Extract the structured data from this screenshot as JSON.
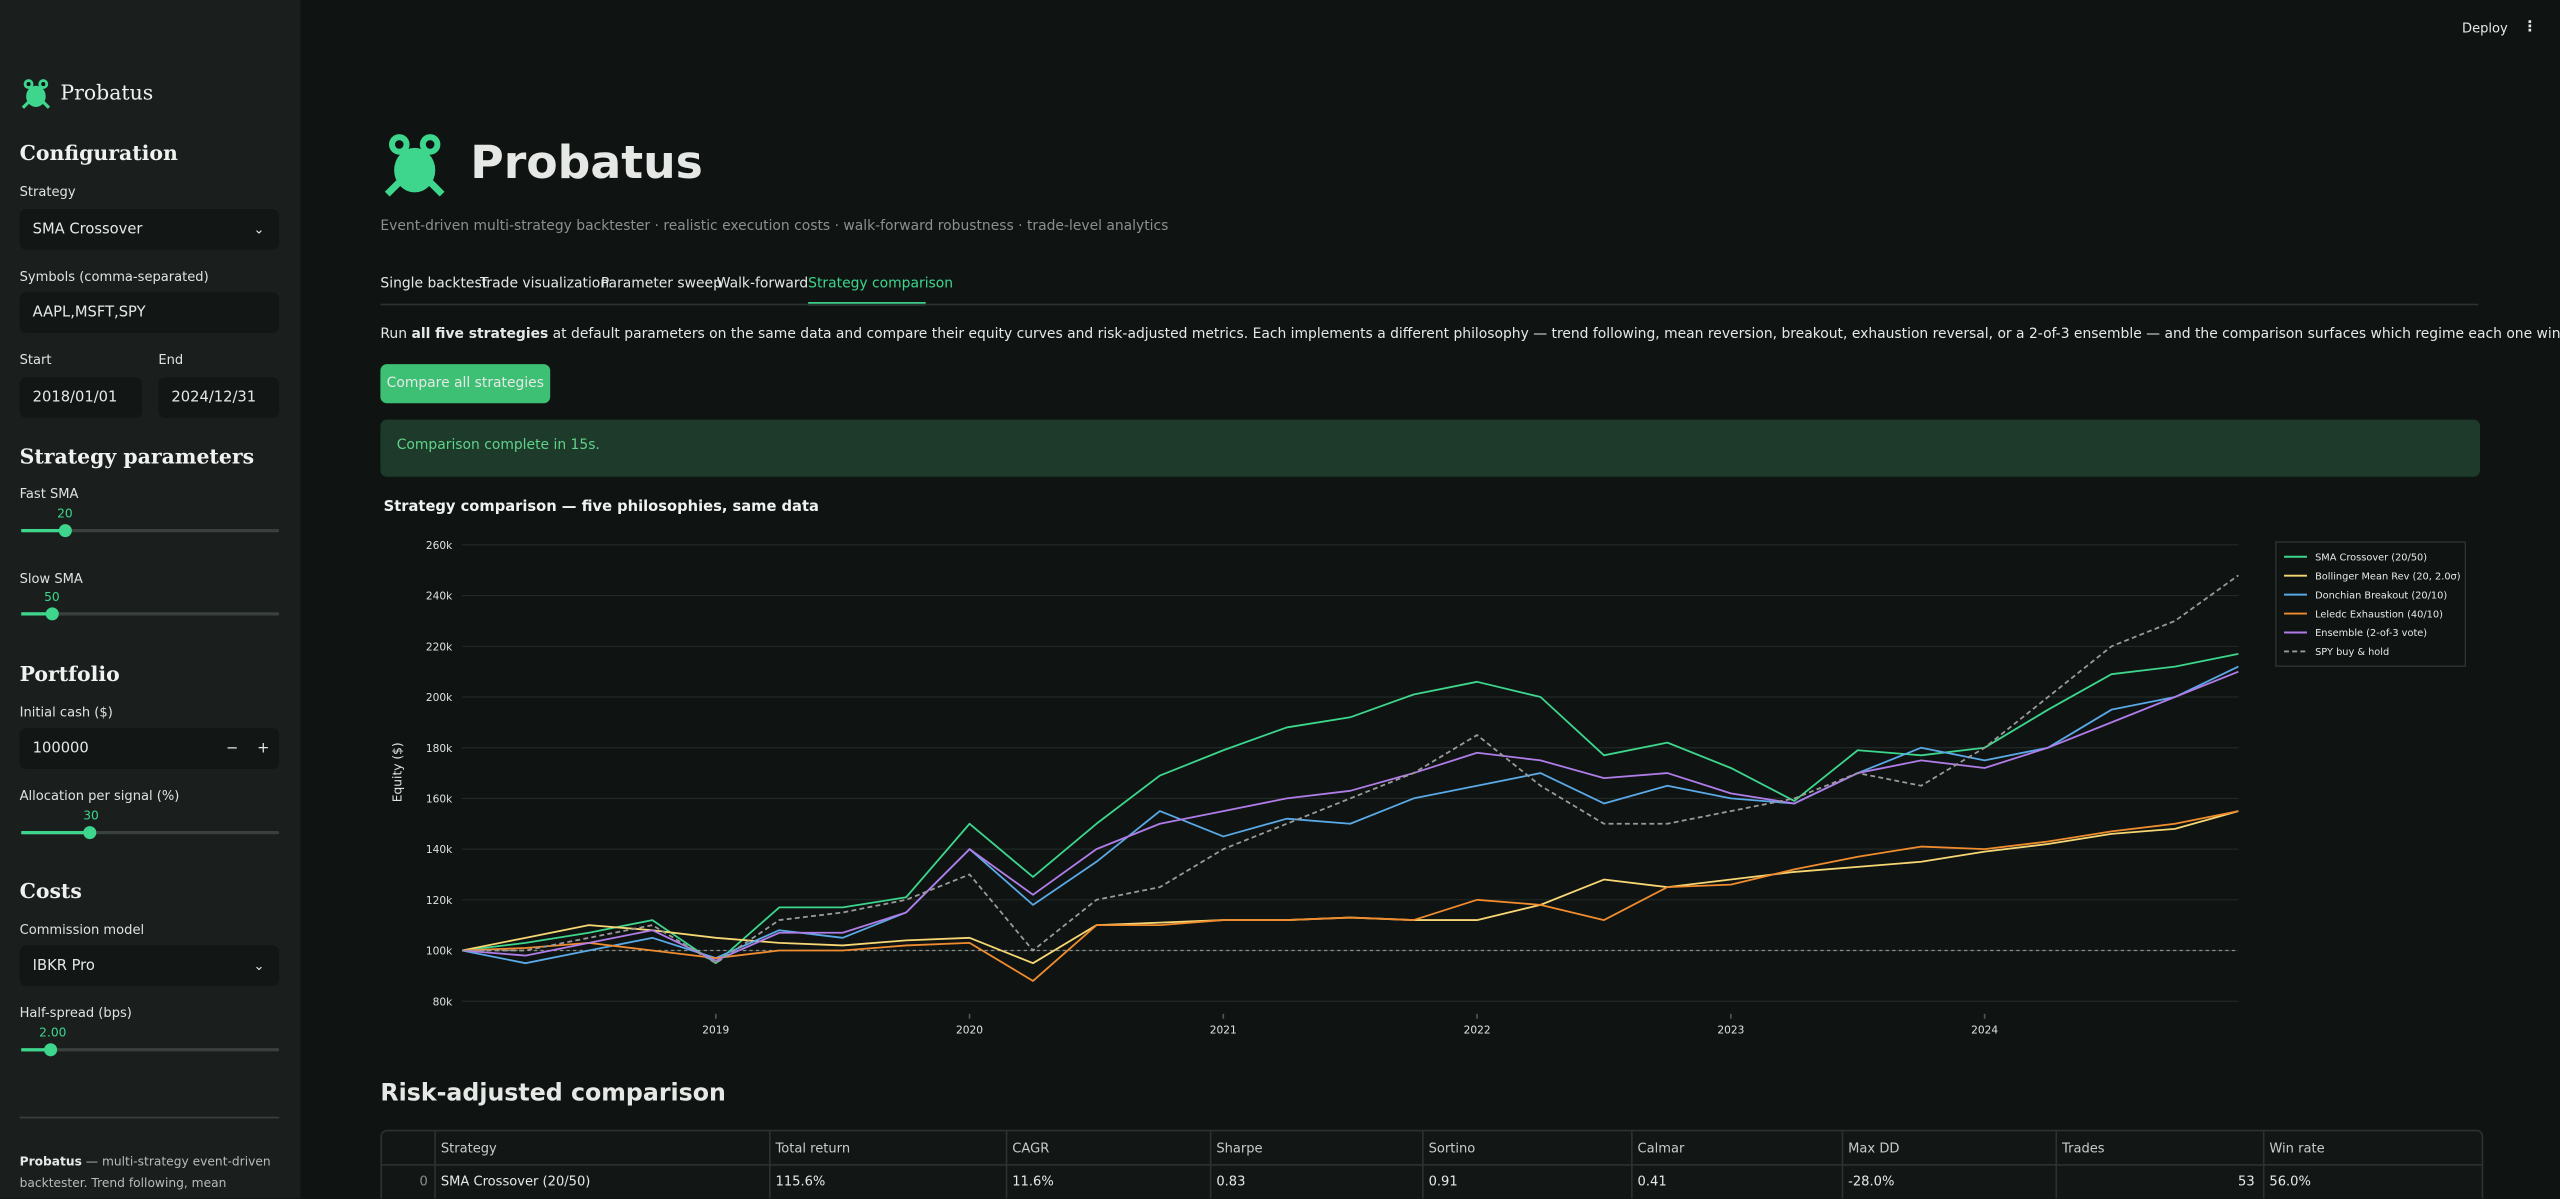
{
  "header": {
    "deploy": "Deploy",
    "menu": "⋮"
  },
  "sidebar": {
    "brand": "Probatus",
    "configuration": "Configuration",
    "strategy_label": "Strategy",
    "strategy": "SMA Crossover",
    "symbols_label": "Symbols (comma-separated)",
    "symbols": "AAPL,MSFT,SPY",
    "start_label": "Start",
    "start": "2018/01/01",
    "end_label": "End",
    "end": "2024/12/31",
    "params_heading": "Strategy parameters",
    "fast_label": "Fast SMA",
    "fast_value": "20",
    "slow_label": "Slow SMA",
    "slow_value": "50",
    "portfolio_heading": "Portfolio",
    "cash_label": "Initial cash ($)",
    "cash": "100000",
    "minus": "−",
    "plus": "+",
    "alloc_label": "Allocation per signal (%)",
    "alloc_value": "30",
    "costs_heading": "Costs",
    "commission_label": "Commission model",
    "commission": "IBKR Pro",
    "spread_label": "Half-spread (bps)",
    "spread_value": "2.00",
    "footer_bold": "Probatus",
    "footer": " — multi-strategy event-driven backtester. Trend following, mean reversion,"
  },
  "main": {
    "title": "Probatus",
    "subtitle": "Event-driven multi-strategy backtester · realistic execution costs · walk-forward robustness · trade-level analytics",
    "tabs": [
      "Single backtest",
      "Trade visualization",
      "Parameter sweep",
      "Walk-forward",
      "Strategy comparison"
    ],
    "intro": {
      "before": "Run ",
      "bold": "all five strategies",
      "after": " at default parameters on the same data and compare their equity curves and risk-adjusted metrics. Each implements a different philosophy — trend following, mean reversion, breakout, exhaustion reversal, or a 2-of-3 ensemble — and the comparison surfaces which regime each one wins in."
    },
    "button": "Compare all strategies",
    "status": "Comparison complete in 15s.",
    "table_heading": "Risk-adjusted comparison"
  },
  "chart_data": {
    "type": "line",
    "title": "Strategy comparison — five philosophies, same data",
    "ylabel": "Equity ($)",
    "x": [
      2018,
      2018.25,
      2018.5,
      2018.75,
      2019,
      2019.25,
      2019.5,
      2019.75,
      2020,
      2020.25,
      2020.5,
      2020.75,
      2021,
      2021.25,
      2021.5,
      2021.75,
      2022,
      2022.25,
      2022.5,
      2022.75,
      2023,
      2023.25,
      2023.5,
      2023.75,
      2024,
      2024.25,
      2024.5,
      2024.75,
      2025
    ],
    "xlim": [
      2018,
      2025
    ],
    "xticks": [
      2019,
      2020,
      2021,
      2022,
      2023,
      2024
    ],
    "ylim": [
      75000,
      265000
    ],
    "yticks": [
      {
        "value": 80000,
        "label": "80k"
      },
      {
        "value": 100000,
        "label": "100k"
      },
      {
        "value": 120000,
        "label": "120k"
      },
      {
        "value": 140000,
        "label": "140k"
      },
      {
        "value": 160000,
        "label": "160k"
      },
      {
        "value": 180000,
        "label": "180k"
      },
      {
        "value": 200000,
        "label": "200k"
      },
      {
        "value": 220000,
        "label": "220k"
      },
      {
        "value": 240000,
        "label": "240k"
      },
      {
        "value": 260000,
        "label": "260k"
      }
    ],
    "grid": true,
    "legend": "right",
    "baseline": 100000,
    "series": [
      {
        "name": "SMA Crossover (20/50)",
        "color": "#3dd68c",
        "linestyle": "solid",
        "values": [
          100000,
          103000,
          107000,
          112000,
          95000,
          117000,
          117000,
          121000,
          150000,
          129000,
          150000,
          169000,
          179000,
          188000,
          192000,
          201000,
          206000,
          200000,
          177000,
          182000,
          172000,
          159000,
          179000,
          177000,
          180000,
          195000,
          209000,
          212000,
          217000
        ]
      },
      {
        "name": "Bollinger Mean Rev (20, 2.0σ)",
        "color": "#f7d774",
        "linestyle": "solid",
        "values": [
          100000,
          105000,
          110000,
          108000,
          105000,
          103000,
          102000,
          104000,
          105000,
          95000,
          110000,
          111000,
          112000,
          112000,
          113000,
          112000,
          112000,
          118000,
          128000,
          125000,
          128000,
          131000,
          133000,
          135000,
          139000,
          142000,
          146000,
          148000,
          155000
        ]
      },
      {
        "name": "Donchian Breakout (20/10)",
        "color": "#5aa9e6",
        "linestyle": "solid",
        "values": [
          100000,
          95000,
          100000,
          105000,
          97000,
          108000,
          105000,
          115000,
          140000,
          118000,
          135000,
          155000,
          145000,
          152000,
          150000,
          160000,
          165000,
          170000,
          158000,
          165000,
          160000,
          158000,
          170000,
          180000,
          175000,
          180000,
          195000,
          200000,
          212000
        ]
      },
      {
        "name": "Leledc Exhaustion (40/10)",
        "color": "#f08c2e",
        "linestyle": "solid",
        "values": [
          100000,
          101000,
          103000,
          100000,
          97000,
          100000,
          100000,
          102000,
          103000,
          88000,
          110000,
          110000,
          112000,
          112000,
          113000,
          112000,
          120000,
          118000,
          112000,
          125000,
          126000,
          132000,
          137000,
          141000,
          140000,
          143000,
          147000,
          150000,
          155000
        ]
      },
      {
        "name": "Ensemble (2-of-3 vote)",
        "color": "#b07ce8",
        "linestyle": "solid",
        "values": [
          100000,
          98000,
          103000,
          108000,
          96000,
          107000,
          107000,
          115000,
          140000,
          122000,
          140000,
          150000,
          155000,
          160000,
          163000,
          170000,
          178000,
          175000,
          168000,
          170000,
          162000,
          158000,
          170000,
          175000,
          172000,
          180000,
          190000,
          200000,
          210000
        ]
      },
      {
        "name": "SPY buy & hold",
        "color": "#9a9a9a",
        "linestyle": "dashed",
        "values": [
          100000,
          100000,
          105000,
          110000,
          95000,
          112000,
          115000,
          120000,
          130000,
          100000,
          120000,
          125000,
          140000,
          150000,
          160000,
          170000,
          185000,
          165000,
          150000,
          150000,
          155000,
          160000,
          170000,
          165000,
          180000,
          200000,
          220000,
          230000,
          248000
        ]
      }
    ]
  },
  "table": {
    "columns": [
      "Strategy",
      "Total return",
      "CAGR",
      "Sharpe",
      "Sortino",
      "Calmar",
      "Max DD",
      "Trades",
      "Win rate"
    ],
    "rows": [
      {
        "index": "0",
        "cells": [
          "SMA Crossover (20/50)",
          "115.6%",
          "11.6%",
          "0.83",
          "0.91",
          "0.41",
          "-28.0%",
          "53",
          "56.0%"
        ]
      }
    ]
  }
}
